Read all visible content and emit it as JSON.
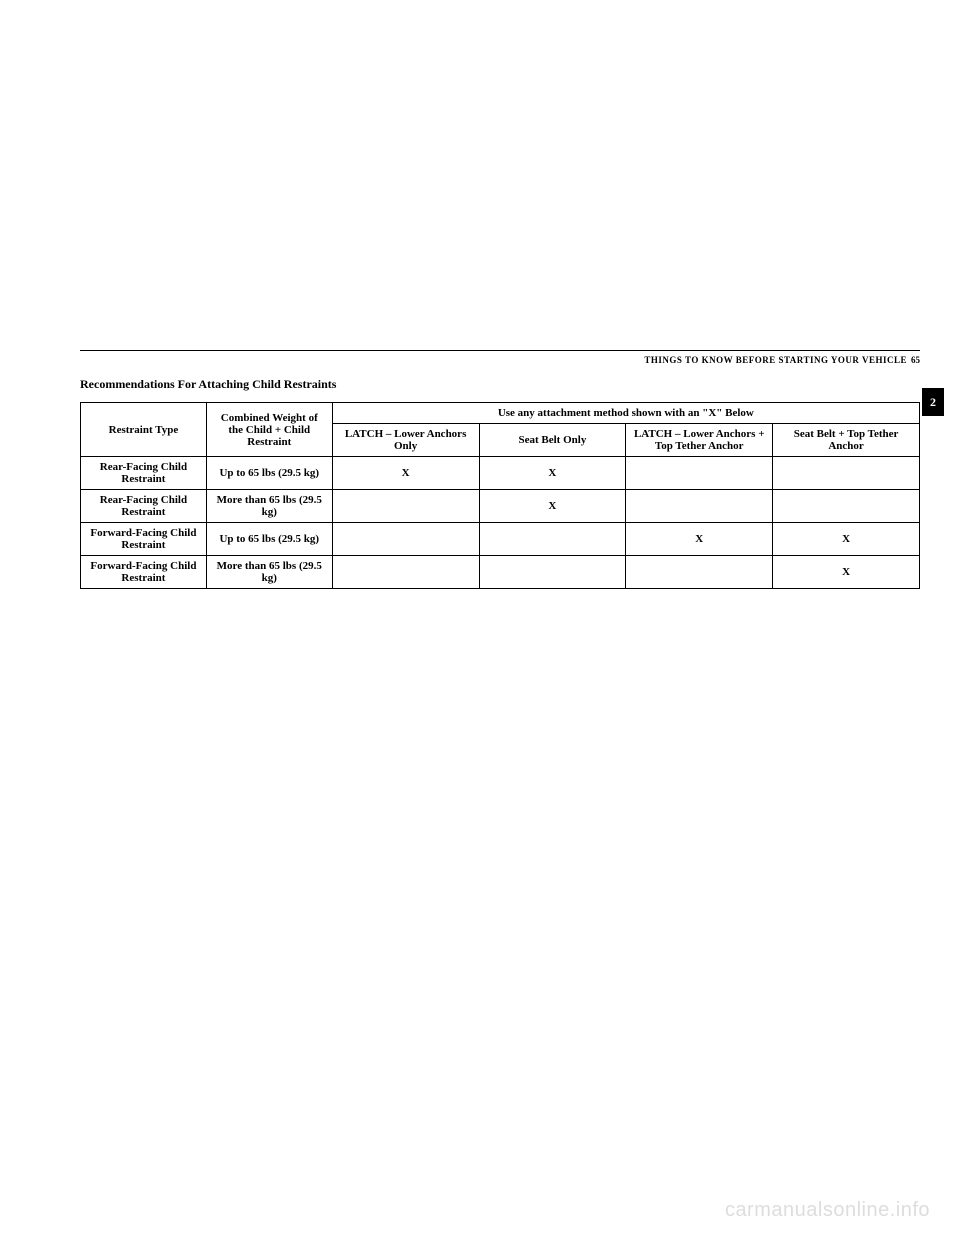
{
  "header": {
    "section_title": "THINGS TO KNOW BEFORE STARTING YOUR VEHICLE",
    "page_number": "65"
  },
  "tab_label": "2",
  "subtitle": "Recommendations For Attaching Child Restraints",
  "table": {
    "headers": {
      "restraint_type": "Restraint Type",
      "combined_weight": "Combined Weight of the Child + Child Restraint",
      "spanning": "Use any attachment method shown with an \"X\" Below",
      "col1": "LATCH – Lower Anchors Only",
      "col2": "Seat Belt Only",
      "col3": "LATCH – Lower Anchors + Top Tether Anchor",
      "col4": "Seat Belt + Top Tether Anchor"
    },
    "rows": [
      {
        "type": "Rear-Facing Child Restraint",
        "weight": "Up to 65 lbs (29.5 kg)",
        "c1": "X",
        "c2": "X",
        "c3": "",
        "c4": ""
      },
      {
        "type": "Rear-Facing Child Restraint",
        "weight": "More than 65 lbs (29.5 kg)",
        "c1": "",
        "c2": "X",
        "c3": "",
        "c4": ""
      },
      {
        "type": "Forward-Facing Child Restraint",
        "weight": "Up to 65 lbs (29.5 kg)",
        "c1": "",
        "c2": "",
        "c3": "X",
        "c4": "X"
      },
      {
        "type": "Forward-Facing Child Restraint",
        "weight": "More than 65 lbs (29.5 kg)",
        "c1": "",
        "c2": "",
        "c3": "",
        "c4": "X"
      }
    ]
  },
  "watermark": "carmanualsonline.info"
}
